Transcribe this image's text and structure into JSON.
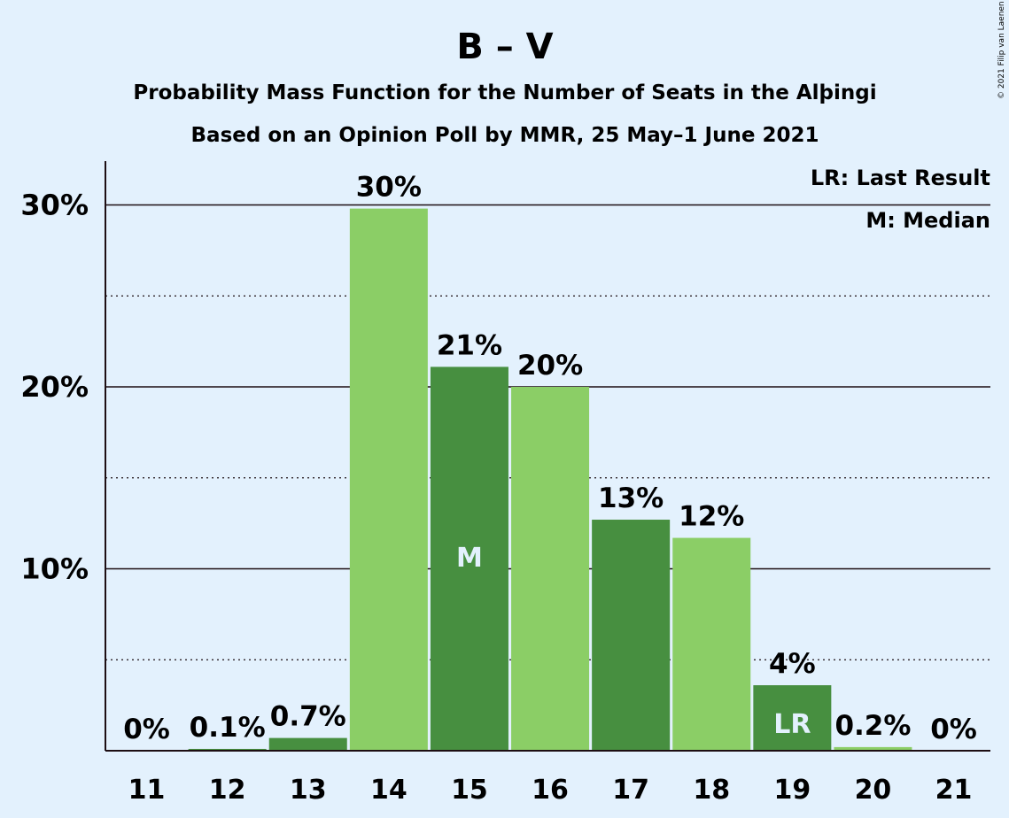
{
  "title": "B – V",
  "subtitle1": "Probability Mass Function for the Number of Seats in the Alþingi",
  "subtitle2": "Based on an Opinion Poll by MMR, 25 May–1 June 2021",
  "copyright": "© 2021 Filip van Laenen",
  "legend": {
    "lr": "LR: Last Result",
    "m": "M: Median"
  },
  "colors": {
    "background": "#e3f1fd",
    "light_bar": "#8bce66",
    "dark_bar": "#478f40",
    "text": "#1d0e13"
  },
  "chart_data": {
    "type": "bar",
    "categories": [
      "11",
      "12",
      "13",
      "14",
      "15",
      "16",
      "17",
      "18",
      "19",
      "20",
      "21"
    ],
    "values": [
      0,
      0.1,
      0.7,
      29.8,
      21.1,
      20.0,
      12.7,
      11.7,
      3.6,
      0.2,
      0
    ],
    "labels": [
      "0%",
      "0.1%",
      "0.7%",
      "30%",
      "21%",
      "20%",
      "13%",
      "12%",
      "4%",
      "0.2%",
      "0%"
    ],
    "bar_shade": [
      "light",
      "dark",
      "dark",
      "light",
      "dark",
      "light",
      "dark",
      "light",
      "dark",
      "light",
      "dark"
    ],
    "markers": {
      "15": "M",
      "19": "LR"
    },
    "yticks": [
      10,
      20,
      30
    ],
    "ytick_labels": [
      "10%",
      "20%",
      "30%"
    ],
    "ylim": [
      0,
      32.5
    ],
    "grid": "solid at 10% steps, dotted at 5% steps"
  }
}
